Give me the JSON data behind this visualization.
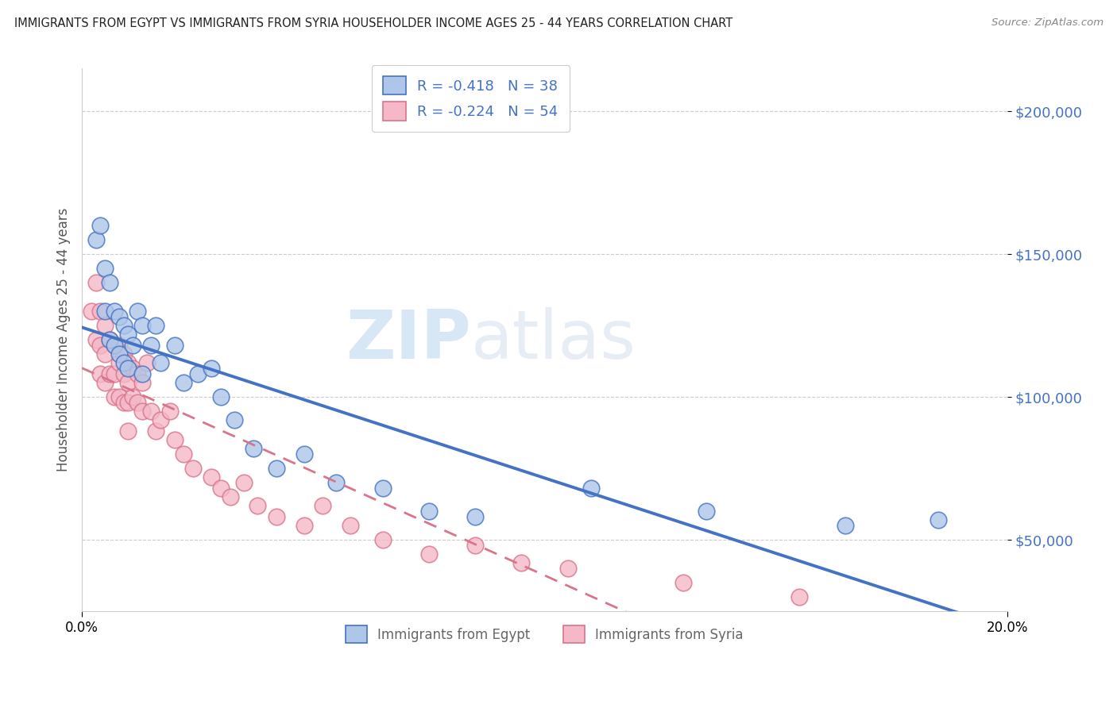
{
  "title": "IMMIGRANTS FROM EGYPT VS IMMIGRANTS FROM SYRIA HOUSEHOLDER INCOME AGES 25 - 44 YEARS CORRELATION CHART",
  "source": "Source: ZipAtlas.com",
  "ylabel": "Householder Income Ages 25 - 44 years",
  "xlim": [
    0.0,
    0.2
  ],
  "ylim": [
    25000,
    215000
  ],
  "yticks": [
    50000,
    100000,
    150000,
    200000
  ],
  "ytick_labels": [
    "$50,000",
    "$100,000",
    "$150,000",
    "$200,000"
  ],
  "egypt_color": "#aec6e8",
  "egypt_line_color": "#4472c4",
  "syria_color": "#f4b8c8",
  "syria_line_color": "#d9748a",
  "legend_r_egypt": "-0.418",
  "legend_n_egypt": "38",
  "legend_r_syria": "-0.224",
  "legend_n_syria": "54",
  "watermark_zip": "ZIP",
  "watermark_atlas": "atlas",
  "egypt_x": [
    0.003,
    0.004,
    0.005,
    0.005,
    0.006,
    0.006,
    0.007,
    0.007,
    0.008,
    0.008,
    0.009,
    0.009,
    0.01,
    0.01,
    0.011,
    0.012,
    0.013,
    0.013,
    0.015,
    0.016,
    0.017,
    0.02,
    0.022,
    0.025,
    0.028,
    0.03,
    0.033,
    0.037,
    0.042,
    0.048,
    0.055,
    0.065,
    0.075,
    0.085,
    0.11,
    0.135,
    0.165,
    0.185
  ],
  "egypt_y": [
    155000,
    160000,
    130000,
    145000,
    120000,
    140000,
    130000,
    118000,
    128000,
    115000,
    125000,
    112000,
    122000,
    110000,
    118000,
    130000,
    125000,
    108000,
    118000,
    125000,
    112000,
    118000,
    105000,
    108000,
    110000,
    100000,
    92000,
    82000,
    75000,
    80000,
    70000,
    68000,
    60000,
    58000,
    68000,
    60000,
    55000,
    57000
  ],
  "syria_x": [
    0.002,
    0.003,
    0.003,
    0.004,
    0.004,
    0.004,
    0.005,
    0.005,
    0.005,
    0.006,
    0.006,
    0.007,
    0.007,
    0.007,
    0.008,
    0.008,
    0.008,
    0.009,
    0.009,
    0.009,
    0.01,
    0.01,
    0.01,
    0.01,
    0.011,
    0.011,
    0.012,
    0.012,
    0.013,
    0.013,
    0.014,
    0.015,
    0.016,
    0.017,
    0.019,
    0.02,
    0.022,
    0.024,
    0.028,
    0.03,
    0.032,
    0.035,
    0.038,
    0.042,
    0.048,
    0.052,
    0.058,
    0.065,
    0.075,
    0.085,
    0.095,
    0.105,
    0.13,
    0.155
  ],
  "syria_y": [
    130000,
    140000,
    120000,
    130000,
    118000,
    108000,
    125000,
    115000,
    105000,
    120000,
    108000,
    118000,
    108000,
    100000,
    118000,
    112000,
    100000,
    115000,
    108000,
    98000,
    112000,
    105000,
    98000,
    88000,
    110000,
    100000,
    108000,
    98000,
    105000,
    95000,
    112000,
    95000,
    88000,
    92000,
    95000,
    85000,
    80000,
    75000,
    72000,
    68000,
    65000,
    70000,
    62000,
    58000,
    55000,
    62000,
    55000,
    50000,
    45000,
    48000,
    42000,
    40000,
    35000,
    30000
  ]
}
